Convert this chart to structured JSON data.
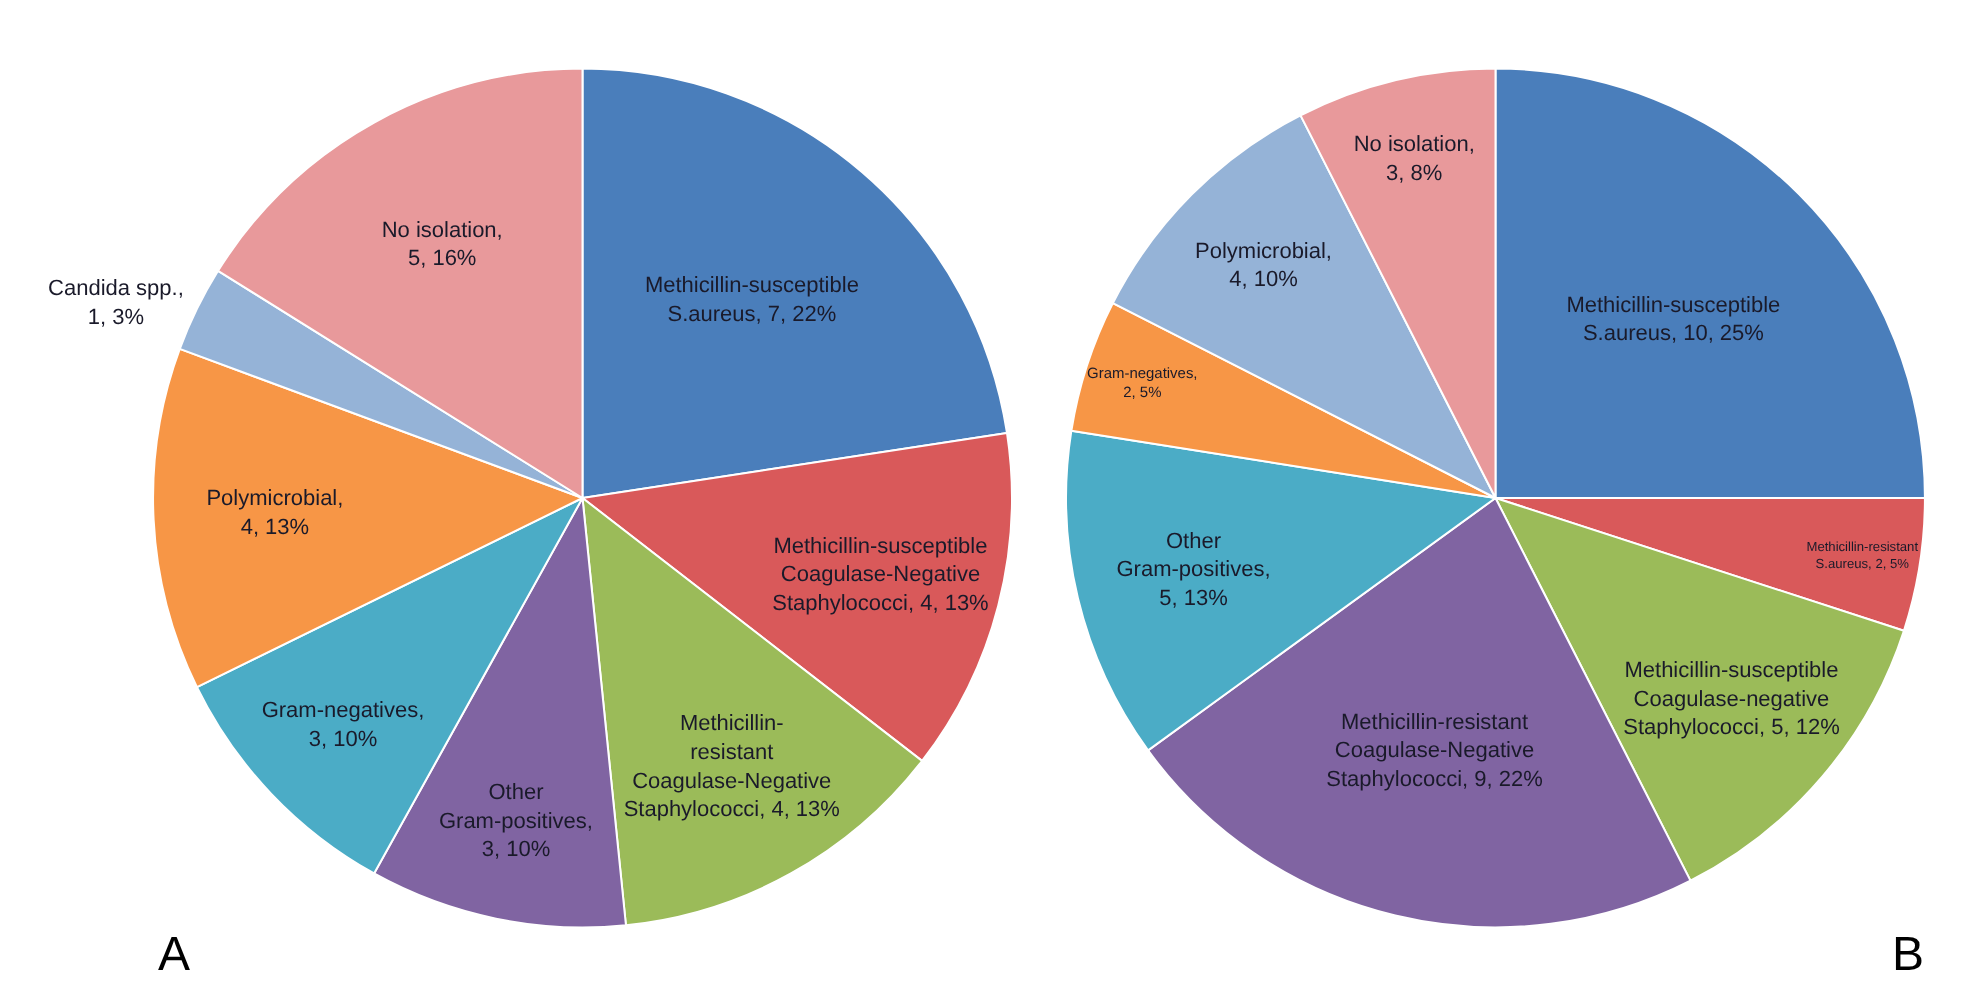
{
  "chart_data": [
    {
      "type": "pie",
      "categories": [
        "Methicillin-susceptible\nS.aureus",
        "Methicillin-susceptible\nCoagulase-Negative\nStaphylococci",
        "Methicillin-\nresistant\nCoagulase-Negative\nStaphylococci",
        "Other\nGram-positives",
        "Gram-negatives",
        "Polymicrobial",
        "Candida spp.",
        "No isolation"
      ],
      "values": [
        7,
        4,
        4,
        3,
        3,
        4,
        1,
        5
      ],
      "value_labels": [
        ", 7, 22%",
        ", 4, 13%",
        ", 4, 13%",
        ",\n3, 10%",
        ",\n3, 10%",
        ",\n4, 13%",
        ",\n1, 3%",
        ",\n5, 16%"
      ],
      "colors": [
        "#4a7ebb",
        "#d9595a",
        "#9bbb59",
        "#8064a2",
        "#4bacc6",
        "#f79646",
        "#95b3d7",
        "#e8999b"
      ],
      "annotations": [
        "A"
      ]
    },
    {
      "type": "pie",
      "categories": [
        "Methicillin-susceptible\nS.aureus",
        "Methicillin-resistant\nS.aureus",
        "Methicillin-susceptible\nCoagulase-negative\nStaphylococci",
        "Methicillin-resistant\nCoagulase-Negative\nStaphylococci",
        "Other\nGram-positives",
        "Gram-negatives",
        "Polymicrobial",
        "No isolation"
      ],
      "values": [
        10,
        2,
        5,
        9,
        5,
        2,
        4,
        3
      ],
      "value_labels": [
        ", 10, 25%",
        ", 2, 5%",
        ", 5, 12%",
        ", 9, 22%",
        ",\n5, 13%",
        ",\n2, 5%",
        ",\n4, 10%",
        ",\n3, 8%"
      ],
      "colors": [
        "#4a7ebb",
        "#d9595a",
        "#9bbb59",
        "#8064a2",
        "#4bacc6",
        "#f79646",
        "#95b3d7",
        "#e8999b"
      ],
      "annotations": [
        "B"
      ]
    }
  ]
}
